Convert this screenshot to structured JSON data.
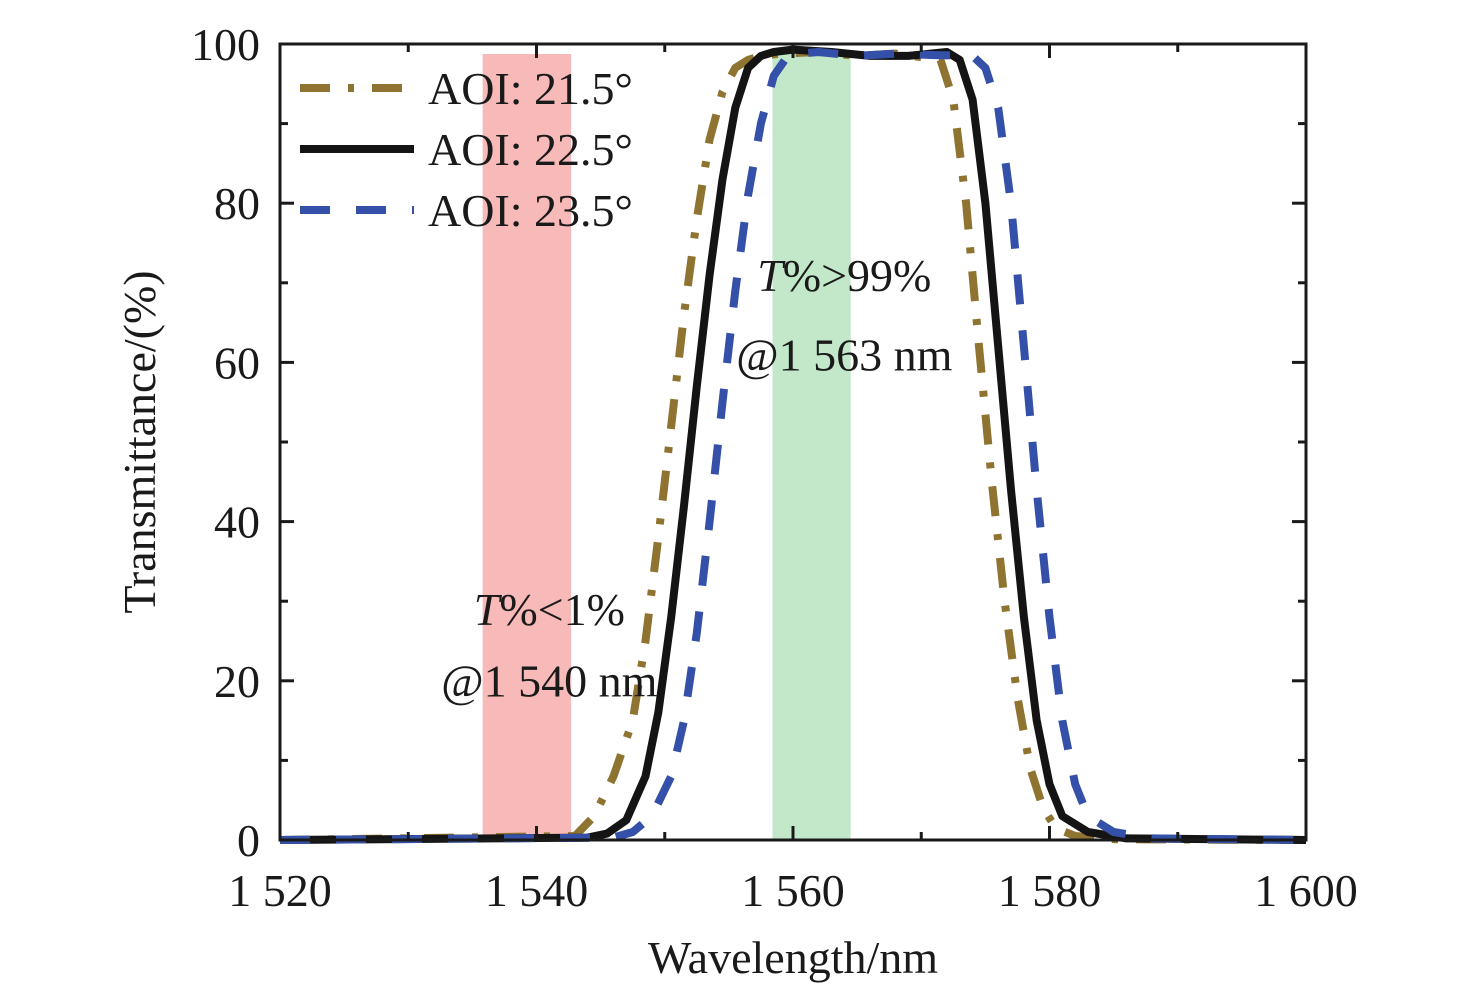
{
  "chart_data": {
    "type": "line",
    "title": "",
    "xlabel": "Wavelength/nm",
    "ylabel": "Transmittance/(%)",
    "xlim": [
      1520,
      1600
    ],
    "ylim": [
      0,
      100
    ],
    "x_ticks": [
      1520,
      1540,
      1560,
      1580,
      1600
    ],
    "x_tick_labels": [
      "1 520",
      "1 540",
      "1 560",
      "1 580",
      "1 600"
    ],
    "y_ticks": [
      0,
      20,
      40,
      60,
      80,
      100
    ],
    "y_tick_labels": [
      "0",
      "20",
      "40",
      "60",
      "80",
      "100"
    ],
    "grid": false,
    "legend_position": "top-left",
    "bands": [
      {
        "x_start": 1535.8,
        "x_end": 1542.7,
        "color": "#f8b9b9"
      },
      {
        "x_start": 1558.4,
        "x_end": 1564.5,
        "color": "#c2e8c9"
      }
    ],
    "annotations": [
      {
        "italic": "T",
        "text": "%<1%",
        "line2": "@1 540 nm",
        "x": 1541,
        "y": 27,
        "y2": 18
      },
      {
        "italic": "T",
        "text": "%>99%",
        "line2": "@1 563 nm",
        "x": 1564,
        "y": 69,
        "y2": 59
      }
    ],
    "series": [
      {
        "name": "AOI: 21.5°",
        "color": "#8e7430",
        "dash": "dashdot",
        "x": [
          1520,
          1543,
          1544.5,
          1546,
          1547.5,
          1548.5,
          1549.5,
          1550.5,
          1551.5,
          1552.5,
          1553.5,
          1554.5,
          1555.5,
          1556.5,
          1557.5,
          1559,
          1562,
          1565,
          1568,
          1571.5,
          1572.5,
          1573.5,
          1574.5,
          1575.5,
          1576.5,
          1577.5,
          1578.5,
          1579.5,
          1580.5,
          1582,
          1585,
          1600
        ],
        "y": [
          0,
          0.5,
          3,
          8,
          15,
          25,
          38,
          52,
          66,
          78,
          88,
          94,
          97,
          98,
          98.5,
          98.8,
          99,
          98.5,
          98.8,
          98,
          93,
          80,
          62,
          45,
          30,
          18,
          9,
          4,
          1.5,
          0.5,
          0.1,
          0
        ]
      },
      {
        "name": "AOI: 22.5°",
        "color": "#141414",
        "dash": "solid",
        "x": [
          1520,
          1544,
          1545.5,
          1547,
          1548.5,
          1549.5,
          1550.5,
          1551.5,
          1552.5,
          1553.5,
          1554.5,
          1555.5,
          1556.5,
          1557.5,
          1558.5,
          1560,
          1563,
          1566,
          1569,
          1572,
          1573,
          1574,
          1575,
          1576,
          1577,
          1578,
          1579,
          1580,
          1581,
          1583,
          1586,
          1600
        ],
        "y": [
          0,
          0.3,
          0.8,
          2.5,
          8,
          16,
          28,
          42,
          57,
          71,
          83,
          92,
          97,
          98.5,
          99,
          99.3,
          99,
          98.5,
          98.5,
          99,
          98,
          93,
          80,
          62,
          44,
          28,
          15,
          7,
          3,
          1,
          0.2,
          0
        ]
      },
      {
        "name": "AOI: 23.5°",
        "color": "#3550a8",
        "dash": "dash",
        "x": [
          1520,
          1546,
          1547.5,
          1549,
          1550.5,
          1551.5,
          1552.5,
          1553.5,
          1554.5,
          1555.5,
          1556.5,
          1557.5,
          1558.5,
          1559.5,
          1560.5,
          1562,
          1565,
          1568,
          1571,
          1574,
          1575,
          1576,
          1577,
          1578,
          1579,
          1580,
          1581,
          1582,
          1583,
          1585,
          1588,
          1600
        ],
        "y": [
          0,
          0.3,
          1,
          3,
          8,
          15,
          26,
          40,
          55,
          69,
          81,
          90,
          96,
          98.3,
          98.8,
          99,
          98.5,
          98.8,
          98.6,
          98.5,
          97,
          92,
          80,
          62,
          44,
          28,
          15,
          7,
          3,
          1,
          0.2,
          0
        ]
      }
    ]
  }
}
